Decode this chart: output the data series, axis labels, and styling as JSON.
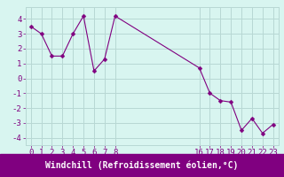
{
  "x": [
    0,
    1,
    2,
    3,
    4,
    5,
    6,
    7,
    8,
    16,
    17,
    18,
    19,
    20,
    21,
    22,
    23
  ],
  "y": [
    3.5,
    3.0,
    1.5,
    1.5,
    3.0,
    4.2,
    0.5,
    1.3,
    4.2,
    0.7,
    -1.0,
    -1.5,
    -1.6,
    -3.5,
    -2.7,
    -3.7,
    -3.1
  ],
  "line_color": "#800080",
  "marker": "D",
  "marker_size": 2.5,
  "bg_color": "#d8f5f0",
  "grid_color": "#b8d8d4",
  "xlabel": "Windchill (Refroidissement éolien,°C)",
  "xlabel_bg": "#800080",
  "xlabel_color": "#ffffff",
  "ylim": [
    -4.5,
    4.8
  ],
  "yticks": [
    -4,
    -3,
    -2,
    -1,
    0,
    1,
    2,
    3,
    4
  ],
  "xticks": [
    0,
    1,
    2,
    3,
    4,
    5,
    6,
    7,
    8,
    16,
    17,
    18,
    19,
    20,
    21,
    22,
    23
  ],
  "tick_fontsize": 6.5,
  "xlabel_fontsize": 7.0,
  "figwidth": 3.2,
  "figheight": 2.0,
  "dpi": 100
}
